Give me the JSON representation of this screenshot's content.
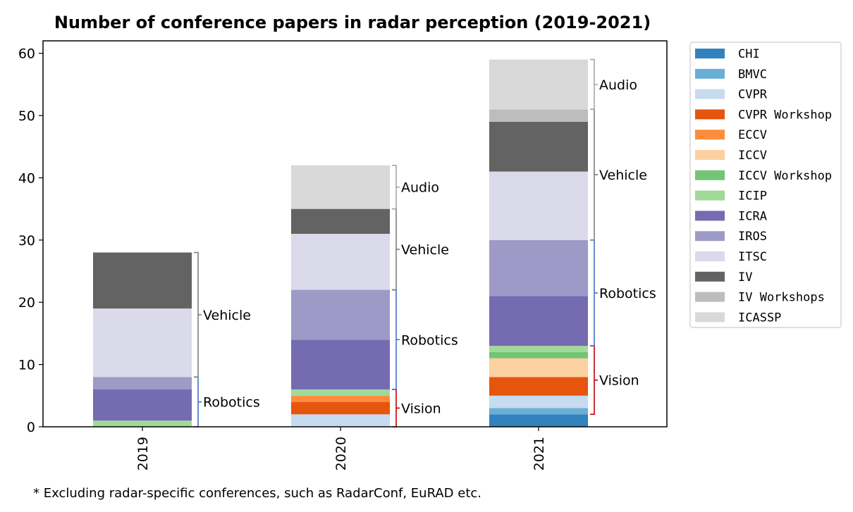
{
  "chart_data": {
    "type": "bar",
    "stacked": true,
    "title": "Number of conference papers in radar perception (2019-2021)",
    "xlabel": "",
    "ylabel": "",
    "categories": [
      "2019",
      "2020",
      "2021"
    ],
    "ylim": [
      0,
      62
    ],
    "yticks": [
      0,
      10,
      20,
      30,
      40,
      50,
      60
    ],
    "grid": false,
    "legend_position": "outside-right",
    "series": [
      {
        "name": "CHI",
        "color": "#3182bd",
        "values": [
          0,
          0,
          2
        ]
      },
      {
        "name": "BMVC",
        "color": "#6baed6",
        "values": [
          0,
          0,
          1
        ]
      },
      {
        "name": "CVPR",
        "color": "#c6dbef",
        "values": [
          0,
          2,
          2
        ]
      },
      {
        "name": "CVPR Workshop",
        "color": "#e6550d",
        "values": [
          0,
          2,
          3
        ]
      },
      {
        "name": "ECCV",
        "color": "#fd8d3c",
        "values": [
          0,
          1,
          0
        ]
      },
      {
        "name": "ICCV",
        "color": "#fdd0a2",
        "values": [
          0,
          0,
          3
        ]
      },
      {
        "name": "ICCV Workshop",
        "color": "#74c476",
        "values": [
          0,
          0,
          1
        ]
      },
      {
        "name": "ICIP",
        "color": "#a1d99b",
        "values": [
          1,
          1,
          1
        ]
      },
      {
        "name": "ICRA",
        "color": "#756bb1",
        "values": [
          5,
          8,
          8
        ]
      },
      {
        "name": "IROS",
        "color": "#9e9ac8",
        "values": [
          2,
          8,
          9
        ]
      },
      {
        "name": "ITSC",
        "color": "#dadaeb",
        "values": [
          11,
          9,
          11
        ]
      },
      {
        "name": "IV",
        "color": "#636363",
        "values": [
          9,
          4,
          8
        ]
      },
      {
        "name": "IV Workshops",
        "color": "#bdbdbd",
        "values": [
          0,
          0,
          2
        ]
      },
      {
        "name": "ICASSP",
        "color": "#d9d9d9",
        "values": [
          0,
          7,
          8
        ]
      }
    ],
    "annotations": [
      {
        "category": "2019",
        "label": "Robotics",
        "from": 0,
        "to": 8,
        "color": "#4472c4"
      },
      {
        "category": "2019",
        "label": "Vehicle",
        "from": 8,
        "to": 28,
        "color": "#7f7f7f"
      },
      {
        "category": "2020",
        "label": "Vision",
        "from": 0,
        "to": 6,
        "color": "#c00000"
      },
      {
        "category": "2020",
        "label": "Robotics",
        "from": 6,
        "to": 22,
        "color": "#4472c4"
      },
      {
        "category": "2020",
        "label": "Vehicle",
        "from": 22,
        "to": 35,
        "color": "#7f7f7f"
      },
      {
        "category": "2020",
        "label": "Audio",
        "from": 35,
        "to": 42,
        "color": "#a6a6a6"
      },
      {
        "category": "2021",
        "label": "Vision",
        "from": 2,
        "to": 13,
        "color": "#c00000"
      },
      {
        "category": "2021",
        "label": "Robotics",
        "from": 13,
        "to": 30,
        "color": "#4472c4"
      },
      {
        "category": "2021",
        "label": "Vehicle",
        "from": 30,
        "to": 51,
        "color": "#7f7f7f"
      },
      {
        "category": "2021",
        "label": "Audio",
        "from": 51,
        "to": 59,
        "color": "#a6a6a6"
      }
    ],
    "footnote": "* Excluding radar-specific conferences, such as RadarConf, EuRAD etc."
  }
}
